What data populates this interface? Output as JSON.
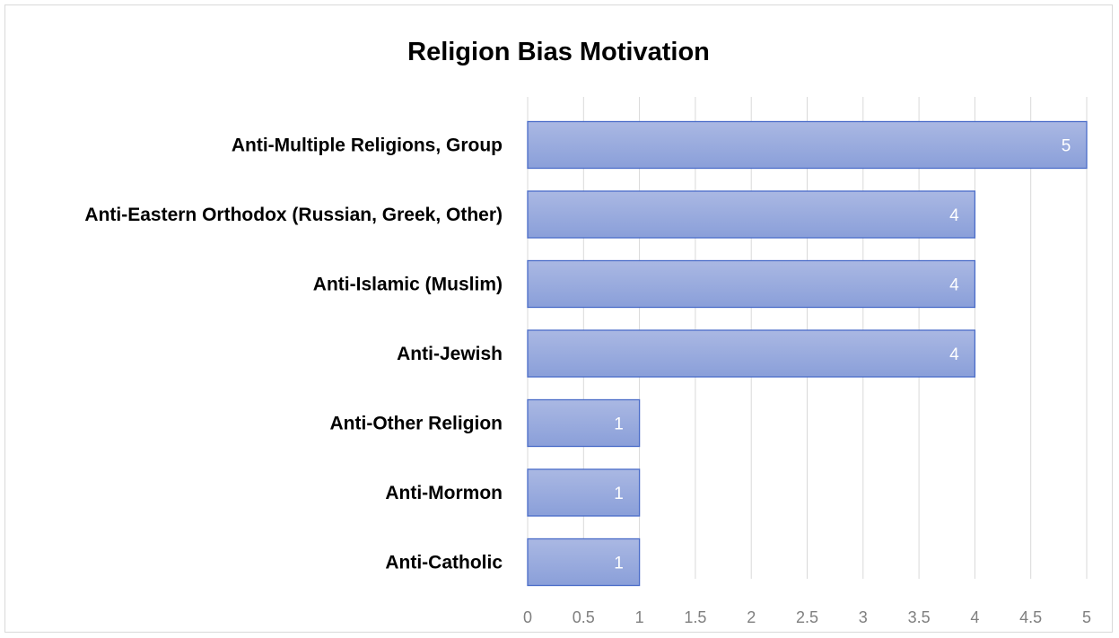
{
  "chart_data": {
    "type": "bar",
    "orientation": "horizontal",
    "title": "Religion Bias Motivation",
    "categories": [
      "Anti-Multiple Religions, Group",
      "Anti-Eastern Orthodox (Russian, Greek, Other)",
      "Anti-Islamic (Muslim)",
      "Anti-Jewish",
      "Anti-Other Religion",
      "Anti-Mormon",
      "Anti-Catholic"
    ],
    "values": [
      5,
      4,
      4,
      4,
      1,
      1,
      1
    ],
    "xlim": [
      0,
      5
    ],
    "xticks": [
      "0",
      "0.5",
      "1",
      "1.5",
      "2",
      "2.5",
      "3",
      "3.5",
      "4",
      "4.5",
      "5"
    ],
    "grid": "vertical",
    "legend": "none",
    "data_labels": "inside-end",
    "colors": {
      "bar_fill_light": "#aab8e3",
      "bar_fill_dark": "#8a9fd9",
      "bar_border": "#4a6cc8",
      "grid": "#d9d9d9",
      "tick_text": "#7f7f7f"
    }
  }
}
